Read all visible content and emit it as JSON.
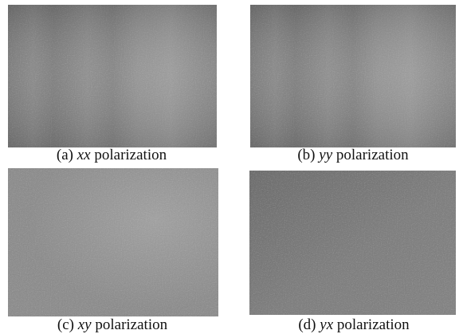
{
  "panels": [
    {
      "label": "(a)",
      "polarization": "xx",
      "word": "polarization"
    },
    {
      "label": "(b)",
      "polarization": "yy",
      "word": "polarization"
    },
    {
      "label": "(c)",
      "polarization": "xy",
      "word": "polarization"
    },
    {
      "label": "(d)",
      "polarization": "yx",
      "word": "polarization"
    }
  ]
}
